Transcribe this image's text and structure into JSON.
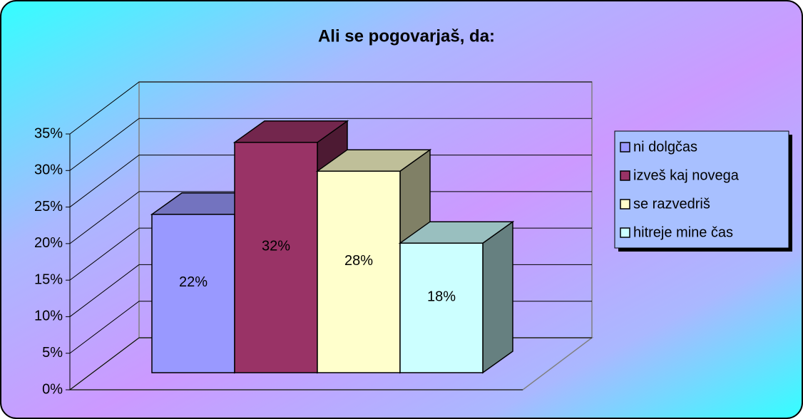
{
  "chart_data": {
    "type": "bar3d",
    "title": "Ali se pogovarjaš, da:",
    "series": [
      {
        "name": "ni dolgčas",
        "color": "#9999ff",
        "values": [
          22
        ],
        "value_labels": [
          "22%"
        ]
      },
      {
        "name": "izveš kaj novega",
        "color": "#993366",
        "values": [
          32
        ],
        "value_labels": [
          "32%"
        ]
      },
      {
        "name": "se razvedriš",
        "color": "#ffffcc",
        "values": [
          28
        ],
        "value_labels": [
          "28%"
        ]
      },
      {
        "name": "hitreje mine čas",
        "color": "#ccffff",
        "values": [
          18
        ],
        "value_labels": [
          "18%"
        ]
      }
    ],
    "ylim": [
      0,
      35
    ],
    "yticks": [
      {
        "value": 0,
        "label": "0%"
      },
      {
        "value": 5,
        "label": "5%"
      },
      {
        "value": 10,
        "label": "10%"
      },
      {
        "value": 15,
        "label": "15%"
      },
      {
        "value": 20,
        "label": "20%"
      },
      {
        "value": 25,
        "label": "25%"
      },
      {
        "value": 30,
        "label": "30%"
      },
      {
        "value": 35,
        "label": "35%"
      }
    ],
    "grid": true,
    "legend": "right"
  }
}
